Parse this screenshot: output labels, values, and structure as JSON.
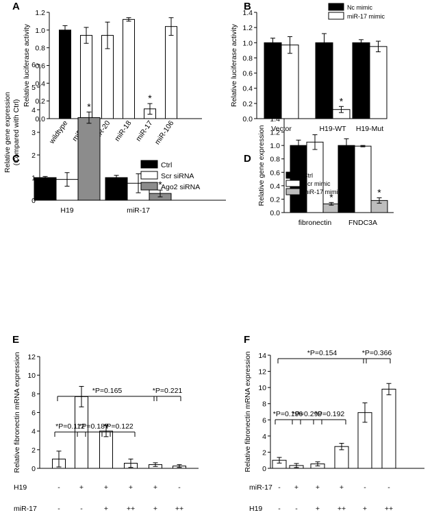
{
  "colors": {
    "black": "#000000",
    "white": "#ffffff",
    "gray": "#8c8c8c",
    "lightgray": "#bdbdbd"
  },
  "chart_data": [
    {
      "id": "A",
      "type": "bar",
      "panel_label": "A",
      "ylabel": "Relative luciferase activity",
      "ylim": [
        0,
        1.2
      ],
      "yticks": [
        "0.0",
        "0.2",
        "0.4",
        "0.6",
        "0.8",
        "1.0",
        "1.2"
      ],
      "categories": [
        "wildtype",
        "miR-93",
        "miR-20",
        "miR-18",
        "miR-17",
        "miR-106"
      ],
      "values": [
        1.0,
        0.94,
        0.94,
        1.12,
        0.11,
        1.04
      ],
      "errors": [
        0.05,
        0.09,
        0.15,
        0.02,
        0.06,
        0.1
      ],
      "fills": [
        "black",
        "white",
        "white",
        "white",
        "white",
        "white"
      ],
      "annotations": [
        {
          "index": 4,
          "text": "*"
        }
      ]
    },
    {
      "id": "B",
      "type": "bar",
      "panel_label": "B",
      "ylabel": "Relative luciferase activity",
      "ylim": [
        0,
        1.4
      ],
      "yticks": [
        "0.0",
        "0.2",
        "0.4",
        "0.6",
        "0.8",
        "1.0",
        "1.2",
        "1.4"
      ],
      "categories": [
        "Vector",
        "H19-WT",
        "H19-Mut"
      ],
      "series": [
        {
          "name": "Nc mimic",
          "fill": "black",
          "values": [
            1.0,
            1.0,
            1.0
          ],
          "errors": [
            0.06,
            0.12,
            0.04
          ]
        },
        {
          "name": "miR-17 mimic",
          "fill": "white",
          "values": [
            0.97,
            0.12,
            0.95
          ],
          "errors": [
            0.11,
            0.04,
            0.07
          ]
        }
      ],
      "legend": "top-right",
      "annotations": [
        {
          "group": 1,
          "series": 1,
          "text": "*"
        }
      ]
    },
    {
      "id": "C",
      "type": "bar",
      "panel_label": "C",
      "ylabel": "Relative gene expression",
      "ylabel2": "(Compared with Ctrl)",
      "ylim": [
        0,
        6
      ],
      "yticks": [
        "0",
        "1",
        "2",
        "3",
        "4",
        "5",
        "6"
      ],
      "categories": [
        "H19",
        "miR-17"
      ],
      "series": [
        {
          "name": "Ctrl",
          "fill": "black",
          "values": [
            1.0,
            1.0
          ],
          "errors": [
            0.05,
            0.1
          ]
        },
        {
          "name": "Scr siRNA",
          "fill": "white",
          "values": [
            0.92,
            0.75
          ],
          "errors": [
            0.3,
            0.42
          ]
        },
        {
          "name": "Ago2 siRNA",
          "fill": "gray",
          "values": [
            3.65,
            0.3
          ],
          "errors": [
            0.25,
            0.15
          ]
        }
      ],
      "legend": "top-right",
      "annotations": [
        {
          "group": 0,
          "series": 2,
          "text": "*"
        },
        {
          "group": 1,
          "series": 2,
          "text": "*"
        }
      ]
    },
    {
      "id": "D",
      "type": "bar",
      "panel_label": "D",
      "ylabel": "Relative gene expression",
      "ylim": [
        0,
        1.4
      ],
      "yticks": [
        "0.0",
        "0.2",
        "0.4",
        "0.6",
        "0.8",
        "1.0",
        "1.2",
        "1.4"
      ],
      "categories": [
        "fibronectin",
        "FNDC3A"
      ],
      "series": [
        {
          "name": "Ctrl",
          "fill": "black",
          "values": [
            1.0,
            1.0
          ],
          "errors": [
            0.08,
            0.1
          ]
        },
        {
          "name": "Scr mimic",
          "fill": "white",
          "values": [
            1.05,
            0.99
          ],
          "errors": [
            0.11,
            0.01
          ]
        },
        {
          "name": "miR-17 mimic",
          "fill": "lightgray",
          "values": [
            0.13,
            0.18
          ],
          "errors": [
            0.02,
            0.04
          ]
        }
      ],
      "legend": "top-left",
      "annotations": [
        {
          "group": 0,
          "series": 2,
          "text": "*"
        },
        {
          "group": 1,
          "series": 2,
          "text": "*"
        }
      ]
    },
    {
      "id": "E",
      "type": "bar",
      "panel_label": "E",
      "ylabel": "Relative fibronectin mRNA expression",
      "ylim": [
        0,
        12
      ],
      "yticks": [
        "0",
        "2",
        "4",
        "6",
        "8",
        "10",
        "12"
      ],
      "values": [
        1.0,
        7.7,
        4.0,
        0.55,
        0.4,
        0.25
      ],
      "errors": [
        0.85,
        1.1,
        0.6,
        0.45,
        0.2,
        0.15
      ],
      "condition_rows": [
        {
          "label": "H19",
          "values": [
            "-",
            "+",
            "+",
            "+",
            "+",
            "-"
          ]
        },
        {
          "label": "miR-17",
          "values": [
            "-",
            "-",
            "+",
            "++",
            "+",
            "++"
          ]
        }
      ],
      "comparisons": [
        {
          "from": 0,
          "to": 4,
          "text": "*P=0.165"
        },
        {
          "from": 4,
          "to": 5,
          "text": "*P=0.221"
        },
        {
          "from": 0,
          "to": 1,
          "text": "*P=0.112"
        },
        {
          "from": 1,
          "to": 2,
          "text": "*P=0.187"
        },
        {
          "from": 2,
          "to": 3,
          "text": "*P=0.122"
        }
      ]
    },
    {
      "id": "F",
      "type": "bar",
      "panel_label": "F",
      "ylabel": "Relative fibronectin mRNA expression",
      "ylim": [
        0,
        14
      ],
      "yticks": [
        "0",
        "2",
        "4",
        "6",
        "8",
        "10",
        "12",
        "14"
      ],
      "values": [
        1.0,
        0.35,
        0.55,
        2.7,
        6.9,
        9.8
      ],
      "errors": [
        0.35,
        0.25,
        0.25,
        0.4,
        1.2,
        0.7
      ],
      "condition_rows": [
        {
          "label": "miR-17",
          "values": [
            "-",
            "+",
            "+",
            "+",
            "-",
            "-"
          ]
        },
        {
          "label": "H19",
          "values": [
            "-",
            "-",
            "+",
            "++",
            "+",
            "++"
          ]
        }
      ],
      "comparisons": [
        {
          "from": 0,
          "to": 4,
          "text": "*P=0.154"
        },
        {
          "from": 4,
          "to": 5,
          "text": "*P=0.366"
        },
        {
          "from": 0,
          "to": 1,
          "text": "*P=0.196"
        },
        {
          "from": 1,
          "to": 2,
          "text": "*P=0.299"
        },
        {
          "from": 2,
          "to": 3,
          "text": "*P=0.192"
        }
      ]
    }
  ]
}
